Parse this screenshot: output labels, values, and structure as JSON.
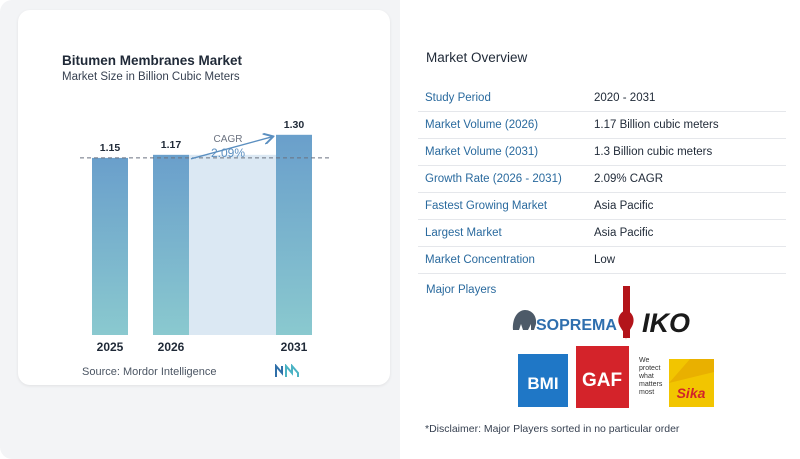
{
  "chart_data": {
    "type": "bar",
    "title": "Bitumen Membranes Market",
    "subtitle": "Market Size in Billion Cubic Meters",
    "categories": [
      "2025",
      "2026",
      "2031"
    ],
    "values": [
      1.15,
      1.17,
      1.3
    ],
    "value_labels": [
      "1.15",
      "1.17",
      "1.30"
    ],
    "annotation": {
      "label": "CAGR",
      "value": "2.09%"
    },
    "colors": {
      "bar_top": "#6a9fcb",
      "bar_bottom": "#8ac9cf",
      "band": "#dbe8f3",
      "accent": "#5b8fc0"
    }
  },
  "source": "Source:  Mordor Intelligence",
  "overview": {
    "title": "Market Overview",
    "rows": [
      {
        "label": "Study Period",
        "value": "2020 - 2031"
      },
      {
        "label": "Market Volume (2026)",
        "value": "1.17 Billion cubic meters"
      },
      {
        "label": "Market Volume (2031)",
        "value": "1.3 Billion cubic meters"
      },
      {
        "label": "Growth Rate (2026 - 2031)",
        "value": "2.09% CAGR"
      },
      {
        "label": "Fastest Growing Market",
        "value": "Asia Pacific"
      },
      {
        "label": "Largest Market",
        "value": "Asia Pacific"
      },
      {
        "label": "Market Concentration",
        "value": "Low"
      }
    ]
  },
  "players": {
    "title": "Major Players",
    "logos": {
      "soprema": "SOPREMA",
      "iko": "IKO",
      "bmi": "BMI",
      "gaf": "GAF",
      "gaf_tagline": "We protect what matters most",
      "sika": "Sika"
    }
  },
  "disclaimer": "*Disclaimer: Major Players sorted in no particular order"
}
